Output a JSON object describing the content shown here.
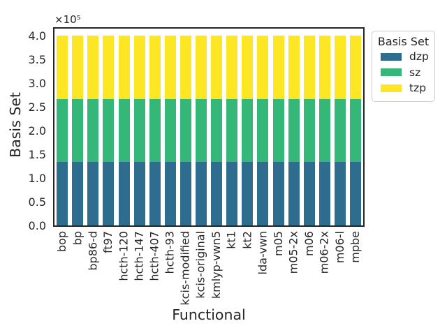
{
  "figure": {
    "background": "#ffffff",
    "text_color": "#262626",
    "spine_color": "#262626"
  },
  "legend": {
    "title": "Basis Set",
    "entries": [
      {
        "label": "dzp",
        "color": "#2e6d8e"
      },
      {
        "label": "sz",
        "color": "#35b779"
      },
      {
        "label": "tzp",
        "color": "#fde725"
      }
    ]
  },
  "chart_data": {
    "type": "bar",
    "stacked": true,
    "title": "",
    "xlabel": "Functional",
    "ylabel": "Basis Set",
    "offset_text": "×10⁵",
    "grid": false,
    "legend_title": "Basis Set",
    "legend_position": "upper right, outside axes",
    "ylim": [
      0,
      420000
    ],
    "bar_total": 400000,
    "categories": [
      "bop",
      "bp",
      "bp86-d",
      "ft97",
      "hcth-120",
      "hcth-147",
      "hcth-407",
      "hcth-93",
      "kcis-modified",
      "kcis-original",
      "kmlyp-vwn5",
      "kt1",
      "kt2",
      "lda-vwn",
      "m05",
      "m05-2x",
      "m06",
      "m06-2x",
      "m06-l",
      "mpbe"
    ],
    "series": [
      {
        "name": "dzp",
        "color": "#2e6d8e",
        "values": [
          133333.33,
          133333.33,
          133333.33,
          133333.33,
          133333.33,
          133333.33,
          133333.33,
          133333.33,
          133333.33,
          133333.33,
          133333.33,
          133333.33,
          133333.33,
          133333.33,
          133333.33,
          133333.33,
          133333.33,
          133333.33,
          133333.33,
          133333.33
        ]
      },
      {
        "name": "sz",
        "color": "#35b779",
        "values": [
          133333.33,
          133333.33,
          133333.33,
          133333.33,
          133333.33,
          133333.33,
          133333.33,
          133333.33,
          133333.33,
          133333.33,
          133333.33,
          133333.33,
          133333.33,
          133333.33,
          133333.33,
          133333.33,
          133333.33,
          133333.33,
          133333.33,
          133333.33
        ]
      },
      {
        "name": "tzp",
        "color": "#fde725",
        "values": [
          133333.33,
          133333.33,
          133333.33,
          133333.33,
          133333.33,
          133333.33,
          133333.33,
          133333.33,
          133333.33,
          133333.33,
          133333.33,
          133333.33,
          133333.33,
          133333.33,
          133333.33,
          133333.33,
          133333.33,
          133333.33,
          133333.33,
          133333.33
        ]
      }
    ],
    "yticks": {
      "values": [
        0,
        50000,
        100000,
        150000,
        200000,
        250000,
        300000,
        350000,
        400000
      ],
      "labels": [
        "0.0",
        "0.5",
        "1.0",
        "1.5",
        "2.0",
        "2.5",
        "3.0",
        "3.5",
        "4.0"
      ]
    }
  }
}
